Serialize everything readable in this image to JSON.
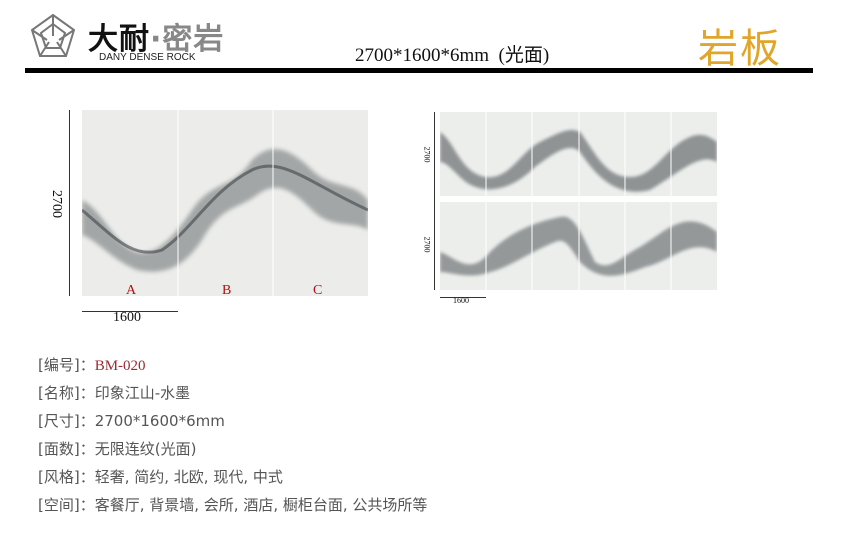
{
  "header": {
    "brand_cn_a": "大耐",
    "brand_cn_b": "·密岩",
    "brand_en": "DANY DENSE ROCK",
    "title": "2700*1600*6mm  (光面)",
    "category": "岩板",
    "category_color": "#e0a52a"
  },
  "left_view": {
    "height_label": "2700",
    "width_label": "1600",
    "slabs": [
      "A",
      "B",
      "C"
    ]
  },
  "right_view": {
    "height_label_top": "2700",
    "height_label_bottom": "2700",
    "width_label": "1600"
  },
  "specs": [
    {
      "label": "[编号]：",
      "value": "BM-020"
    },
    {
      "label": "[名称]：",
      "value": "印象江山-水墨"
    },
    {
      "label": "[尺寸]：",
      "value": "2700*1600*6mm"
    },
    {
      "label": "[面数]：",
      "value": "无限连纹(光面)"
    },
    {
      "label": "[风格]：",
      "value": "轻奢, 简约, 北欧, 现代, 中式"
    },
    {
      "label": "[空间]：",
      "value": "客餐厅, 背景墙, 会所, 酒店, 橱柜台面, 公共场所等"
    }
  ]
}
